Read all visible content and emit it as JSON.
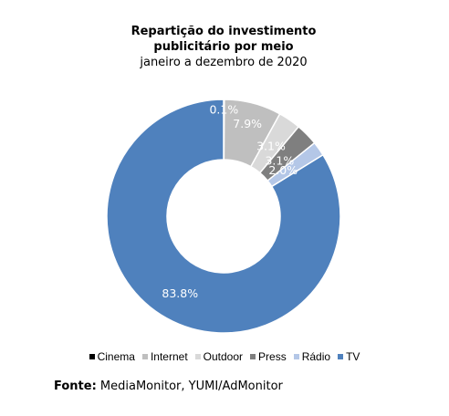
{
  "chart_data": {
    "type": "donut",
    "title_line1": "Repartição do investimento",
    "title_line2": "publicitário por meio",
    "subtitle": "janeiro a dezembro de 2020",
    "unit": "%",
    "slices": [
      {
        "name": "Cinema",
        "value": 0.1,
        "label": "0.1%",
        "color": "#000000"
      },
      {
        "name": "Internet",
        "value": 7.9,
        "label": "7.9%",
        "color": "#bfbfbf"
      },
      {
        "name": "Outdoor",
        "value": 3.1,
        "label": "3.1%",
        "color": "#d9d9d9"
      },
      {
        "name": "Press",
        "value": 3.1,
        "label": "3.1%",
        "color": "#7f7f7f"
      },
      {
        "name": "Rádio",
        "value": 2.0,
        "label": "2.0%",
        "color": "#b4c7e7"
      },
      {
        "name": "TV",
        "value": 83.8,
        "label": "83.8%",
        "color": "#4f81bd"
      }
    ],
    "legend_position": "bottom",
    "start_angle": "12 o'clock",
    "direction": "clockwise"
  },
  "source": {
    "label": "Fonte:",
    "text": "MediaMonitor, YUMI/AdMonitor"
  }
}
